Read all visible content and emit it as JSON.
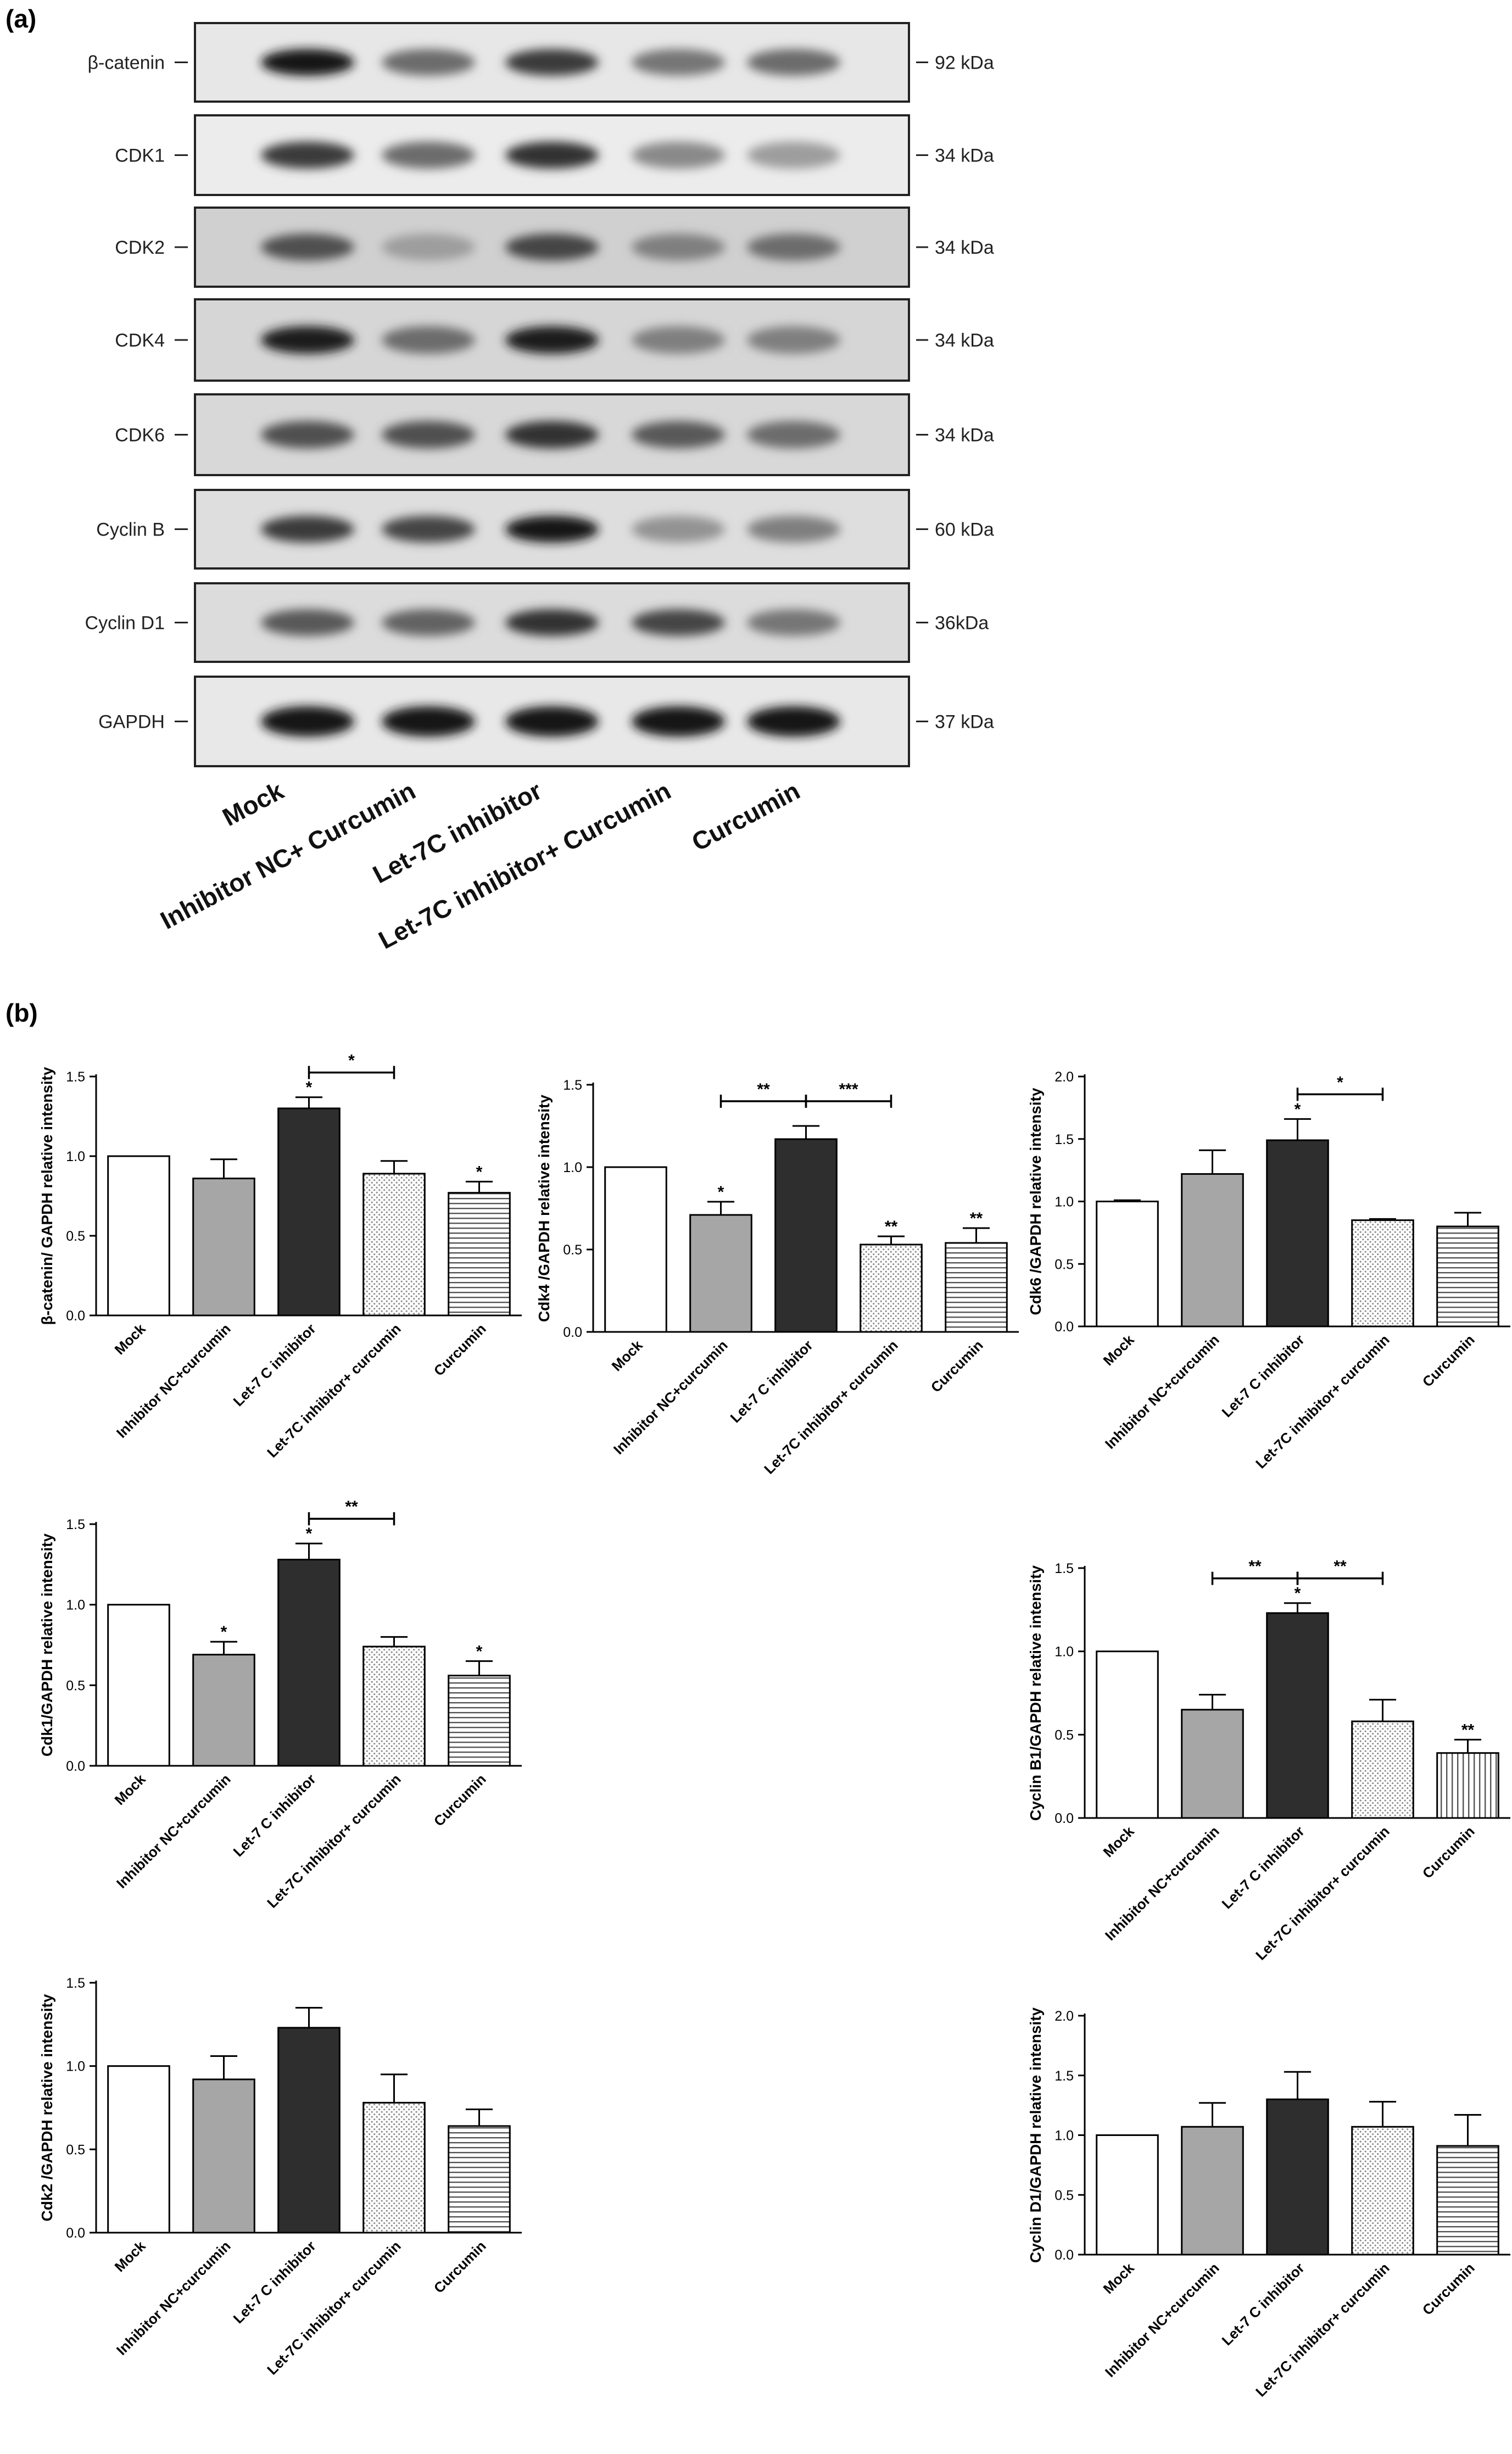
{
  "panel_a": {
    "label": "(a)",
    "blots": [
      {
        "protein": "β-catenin",
        "kda": "92 kDa",
        "bands": [
          1.0,
          0.55,
          0.8,
          0.5,
          0.55
        ],
        "bg": "#e7e7e7"
      },
      {
        "protein": "CDK1",
        "kda": "34 kDa",
        "bands": [
          0.8,
          0.55,
          0.85,
          0.4,
          0.3
        ],
        "bg": "#ececec"
      },
      {
        "protein": "CDK2",
        "kda": "34 kDa",
        "bands": [
          0.7,
          0.3,
          0.75,
          0.45,
          0.55
        ],
        "bg": "#d0d0d0"
      },
      {
        "protein": "CDK4",
        "kda": "34 kDa",
        "bands": [
          0.95,
          0.55,
          0.95,
          0.45,
          0.45
        ],
        "bg": "#d6d6d6"
      },
      {
        "protein": "CDK6",
        "kda": "34 kDa",
        "bands": [
          0.7,
          0.7,
          0.85,
          0.65,
          0.55
        ],
        "bg": "#d8d8d8"
      },
      {
        "protein": "Cyclin B",
        "kda": "60 kDa",
        "bands": [
          0.8,
          0.75,
          1.0,
          0.35,
          0.45
        ],
        "bg": "#dedede"
      },
      {
        "protein": "Cyclin D1",
        "kda": "36kDa",
        "bands": [
          0.65,
          0.6,
          0.85,
          0.75,
          0.5
        ],
        "bg": "#dcdcdc"
      },
      {
        "protein": "GAPDH",
        "kda": "37 kDa",
        "bands": [
          1.0,
          1.0,
          1.0,
          1.0,
          1.0
        ],
        "bg": "#e8e8e8"
      }
    ],
    "lanes": [
      "Mock",
      "Inhibitor NC+ Curcumin",
      "Let-7C inhibitor",
      "Let-7C inhibitor+ Curcumin",
      "Curcumin"
    ]
  },
  "panel_b": {
    "label": "(b)"
  },
  "colors": {
    "white": "#ffffff",
    "gray": "#a6a6a6",
    "dark": "#2e2e2e"
  },
  "chart_data": [
    {
      "type": "bar",
      "ylabel": "β-catenin/ GAPDH relative intensity",
      "categories": [
        "Mock",
        "Inhibitor NC+curcumin",
        "Let-7 C inhibitor",
        "Let-7C inhibitor+ curcumin",
        "Curcumin"
      ],
      "values": [
        1.0,
        0.86,
        1.3,
        0.89,
        0.77
      ],
      "errors": [
        0,
        0.12,
        0.07,
        0.08,
        0.07
      ],
      "yticks": [
        "0.0",
        "0.5",
        "1.0",
        "1.5"
      ],
      "ylim": [
        0,
        1.5
      ],
      "stars": [
        "",
        "",
        "*",
        "",
        "*"
      ],
      "brackets": [
        {
          "from": 2,
          "to": 3,
          "label": "*"
        }
      ]
    },
    {
      "type": "bar",
      "ylabel": "Cdk4 /GAPDH relative intensity",
      "categories": [
        "Mock",
        "Inhibitor NC+curcumin",
        "Let-7 C inhibitor",
        "Let-7C inhibitor+ curcumin",
        "Curcumin"
      ],
      "values": [
        1.0,
        0.71,
        1.17,
        0.53,
        0.54
      ],
      "errors": [
        0,
        0.08,
        0.08,
        0.05,
        0.09
      ],
      "yticks": [
        "0.0",
        "0.5",
        "1.0",
        "1.5"
      ],
      "ylim": [
        0,
        1.5
      ],
      "stars": [
        "",
        "*",
        "",
        "**",
        "**"
      ],
      "brackets": [
        {
          "from": 1,
          "to": 2,
          "label": "**"
        },
        {
          "from": 2,
          "to": 3,
          "label": "***"
        }
      ]
    },
    {
      "type": "bar",
      "ylabel": "Cdk6 /GAPDH relative intensity",
      "categories": [
        "Mock",
        "Inhibitor NC+curcumin",
        "Let-7 C inhibitor",
        "Let-7C inhibitor+ curcumin",
        "Curcumin"
      ],
      "values": [
        1.0,
        1.22,
        1.49,
        0.85,
        0.8
      ],
      "errors": [
        0.01,
        0.19,
        0.17,
        0.01,
        0.11
      ],
      "yticks": [
        "0.0",
        "0.5",
        "1.0",
        "1.5",
        "2.0"
      ],
      "ylim": [
        0,
        2.0
      ],
      "stars": [
        "",
        "",
        "*",
        "",
        ""
      ],
      "brackets": [
        {
          "from": 2,
          "to": 3,
          "label": "*"
        }
      ]
    },
    {
      "type": "bar",
      "ylabel": "Cdk1/GAPDH relative intensity",
      "categories": [
        "Mock",
        "Inhibitor NC+curcumin",
        "Let-7 C inhibitor",
        "Let-7C inhibitor+ curcumin",
        "Curcumin"
      ],
      "values": [
        1.0,
        0.69,
        1.28,
        0.74,
        0.56
      ],
      "errors": [
        0,
        0.08,
        0.1,
        0.06,
        0.09
      ],
      "yticks": [
        "0.0",
        "0.5",
        "1.0",
        "1.5"
      ],
      "ylim": [
        0,
        1.5
      ],
      "stars": [
        "",
        "*",
        "*",
        "",
        "*"
      ],
      "brackets": [
        {
          "from": 2,
          "to": 3,
          "label": "**"
        }
      ]
    },
    {
      "type": "bar",
      "ylabel": "Cyclin B1/GAPDH relative intensity",
      "categories": [
        "Mock",
        "Inhibitor NC+curcumin",
        "Let-7 C inhibitor",
        "Let-7C inhibitor+ curcumin",
        "Curcumin"
      ],
      "values": [
        1.0,
        0.65,
        1.23,
        0.58,
        0.39
      ],
      "errors": [
        0,
        0.09,
        0.06,
        0.13,
        0.08
      ],
      "yticks": [
        "0.0",
        "0.5",
        "1.0",
        "1.5"
      ],
      "ylim": [
        0,
        1.5
      ],
      "stars": [
        "",
        "",
        "*",
        "",
        "**"
      ],
      "brackets": [
        {
          "from": 1,
          "to": 2,
          "label": "**"
        },
        {
          "from": 2,
          "to": 3,
          "label": "**"
        }
      ]
    },
    {
      "type": "bar",
      "ylabel": "Cdk2 /GAPDH relative intensity",
      "categories": [
        "Mock",
        "Inhibitor NC+curcumin",
        "Let-7 C inhibitor",
        "Let-7C inhibitor+ curcumin",
        "Curcumin"
      ],
      "values": [
        1.0,
        0.92,
        1.23,
        0.78,
        0.64
      ],
      "errors": [
        0,
        0.14,
        0.12,
        0.17,
        0.1
      ],
      "yticks": [
        "0.0",
        "0.5",
        "1.0",
        "1.5"
      ],
      "ylim": [
        0,
        1.5
      ],
      "stars": [
        "",
        "",
        "",
        "",
        ""
      ],
      "brackets": []
    },
    {
      "type": "bar",
      "ylabel": "Cyclin D1/GAPDH relative intensity",
      "categories": [
        "Mock",
        "Inhibitor NC+curcumin",
        "Let-7 C inhibitor",
        "Let-7C inhibitor+ curcumin",
        "Curcumin"
      ],
      "values": [
        1.0,
        1.07,
        1.3,
        1.07,
        0.91
      ],
      "errors": [
        0,
        0.2,
        0.23,
        0.21,
        0.26
      ],
      "yticks": [
        "0.0",
        "0.5",
        "1.0",
        "1.5",
        "2.0"
      ],
      "ylim": [
        0,
        2.0
      ],
      "stars": [
        "",
        "",
        "",
        "",
        ""
      ],
      "brackets": []
    }
  ]
}
